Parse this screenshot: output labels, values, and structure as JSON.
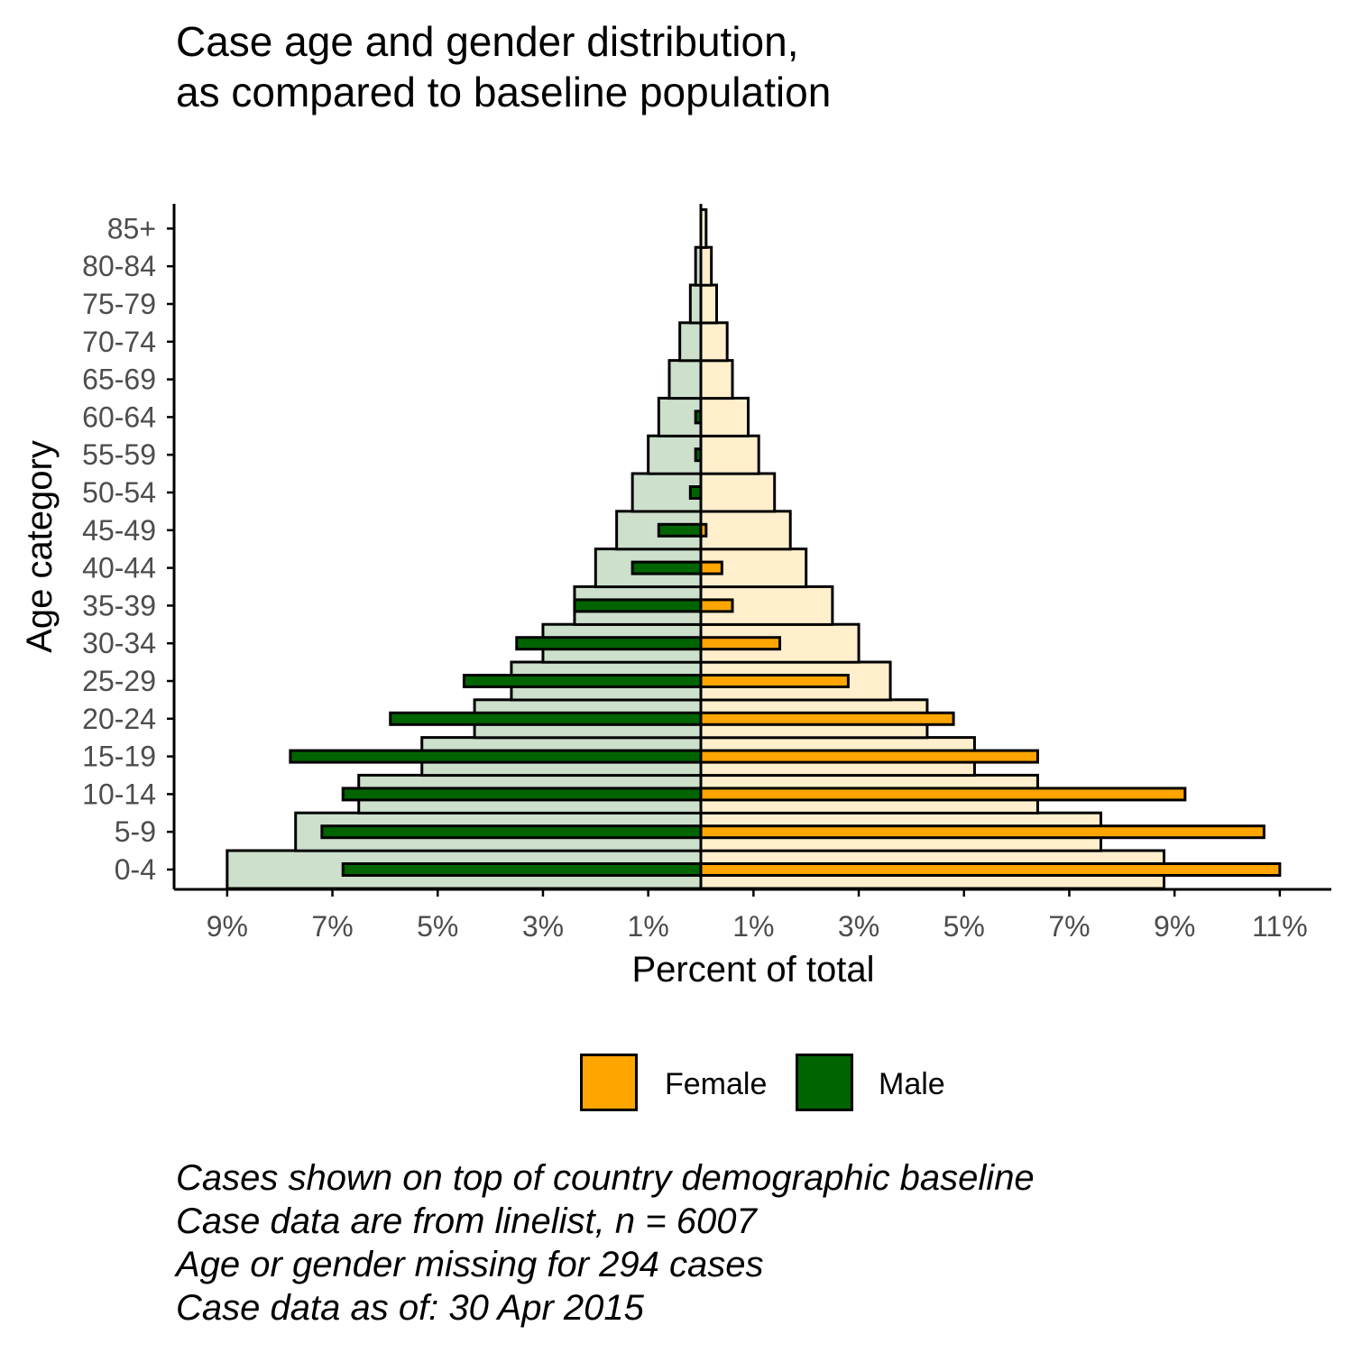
{
  "title_lines": [
    "Case age and gender distribution,",
    "as compared to baseline population"
  ],
  "chart_data": {
    "type": "bar",
    "orientation": "horizontal",
    "layout": "population-pyramid",
    "xlabel": "Percent of total",
    "ylabel": "Age category",
    "xlim": [
      -9,
      11
    ],
    "x_ticks": [
      -9,
      -7,
      -5,
      -3,
      -1,
      1,
      3,
      5,
      7,
      9,
      11
    ],
    "x_tick_labels": [
      "9%",
      "7%",
      "5%",
      "3%",
      "1%",
      "1%",
      "3%",
      "5%",
      "7%",
      "9%",
      "11%"
    ],
    "categories": [
      "0-4",
      "5-9",
      "10-14",
      "15-19",
      "20-24",
      "25-29",
      "30-34",
      "35-39",
      "40-44",
      "45-49",
      "50-54",
      "55-59",
      "60-64",
      "65-69",
      "70-74",
      "75-79",
      "80-84",
      "85+"
    ],
    "series": [
      {
        "name": "Female",
        "role": "cases",
        "color": "#FFA500",
        "values": [
          11.0,
          10.7,
          9.2,
          6.4,
          4.8,
          2.8,
          1.5,
          0.6,
          0.4,
          0.1,
          0.0,
          0.0,
          0.0,
          0.0,
          0.0,
          0.0,
          0.0,
          0.0
        ]
      },
      {
        "name": "Male",
        "role": "cases",
        "color": "#006400",
        "values": [
          6.8,
          7.2,
          6.8,
          7.8,
          5.9,
          4.5,
          3.5,
          2.4,
          1.3,
          0.8,
          0.2,
          0.1,
          0.1,
          0.0,
          0.0,
          0.0,
          0.0,
          0.0
        ]
      },
      {
        "role": "baseline-female",
        "color": "#FFEFCC",
        "values": [
          8.8,
          7.6,
          6.4,
          5.2,
          4.3,
          3.6,
          3.0,
          2.5,
          2.0,
          1.7,
          1.4,
          1.1,
          0.9,
          0.6,
          0.5,
          0.3,
          0.2,
          0.1
        ]
      },
      {
        "role": "baseline-male",
        "color": "#CCE0CC",
        "values": [
          9.0,
          7.7,
          6.5,
          5.3,
          4.3,
          3.6,
          3.0,
          2.4,
          2.0,
          1.6,
          1.3,
          1.0,
          0.8,
          0.6,
          0.4,
          0.2,
          0.1,
          0.0
        ]
      }
    ],
    "legend": {
      "position": "bottom",
      "entries": [
        "Female",
        "Male"
      ]
    },
    "grid": false
  },
  "caption_lines": [
    "Cases shown on top of country demographic baseline",
    "Case data are from linelist, n = 6007",
    "Age or gender missing for 294 cases",
    "Case data as of: 30 Apr 2015"
  ]
}
